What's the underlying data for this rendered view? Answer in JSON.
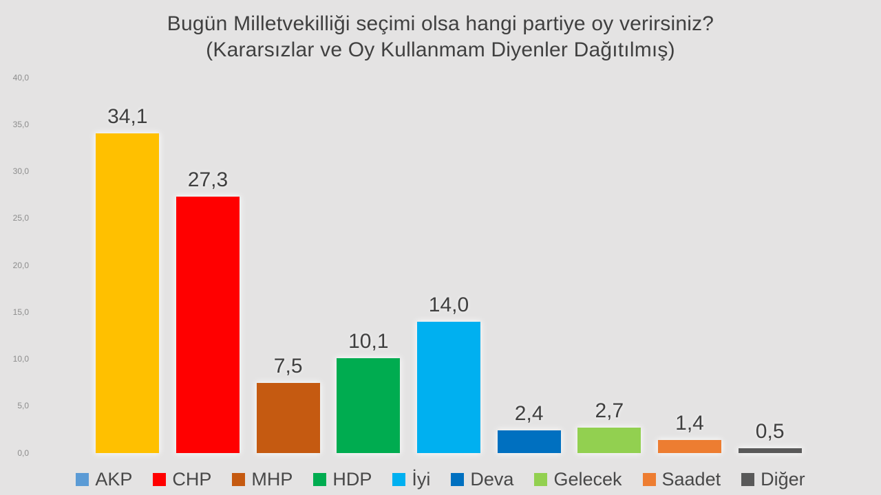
{
  "slide": {
    "background": "#E4E3E3"
  },
  "title": {
    "line1": "Bugün Milletvekilliği seçimi olsa hangi partiye oy verirsiniz?",
    "line2": "(Kararsızlar ve Oy Kullanmam Diyenler Dağıtılmış)",
    "color": "#404040"
  },
  "chart_data": {
    "type": "bar",
    "title": "Bugün Milletvekilliği seçimi olsa hangi partiye oy verirsiniz?",
    "subtitle": "(Kararsızlar ve Oy Kullanmam Diyenler Dağıtılmış)",
    "categories": [
      "AKP",
      "CHP",
      "MHP",
      "HDP",
      "İyi",
      "Deva",
      "Gelecek",
      "Saadet",
      "Diğer"
    ],
    "values": [
      34.1,
      27.3,
      7.5,
      10.1,
      14.0,
      2.4,
      2.7,
      1.4,
      0.5
    ],
    "value_labels": [
      "34,1",
      "27,3",
      "7,5",
      "10,1",
      "14,0",
      "2,4",
      "2,7",
      "1,4",
      "0,5"
    ],
    "bar_colors": [
      "#FFC000",
      "#FF0000",
      "#C55A11",
      "#00AC50",
      "#00B0F0",
      "#0070C0",
      "#92D050",
      "#ED7D31",
      "#595959"
    ],
    "legend_colors": [
      "#5B9BD5",
      "#FF0000",
      "#C55A11",
      "#00AC50",
      "#00B0F0",
      "#0070C0",
      "#92D050",
      "#ED7D31",
      "#595959"
    ],
    "ylim": [
      0,
      40
    ],
    "y_tick_labels": [
      "40,0",
      "35,0",
      "30,0",
      "25,0",
      "20,0",
      "15,0",
      "10,0",
      "5,0",
      "0,0"
    ],
    "grid": false,
    "legend_position": "bottom",
    "axis_text_color": "#8C8C8C",
    "label_text_color": "#3F3F3F"
  }
}
